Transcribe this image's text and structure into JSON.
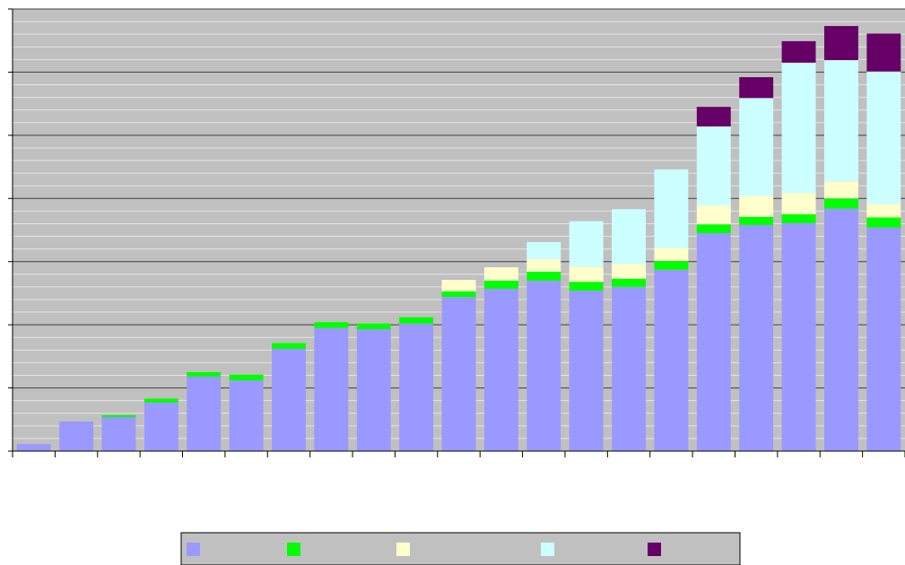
{
  "chart_data": {
    "type": "stacked_bar",
    "categories": [
      null,
      null,
      null,
      null,
      null,
      null,
      null,
      null,
      null,
      null,
      null,
      null,
      null,
      null,
      null,
      null,
      null,
      null,
      null,
      null,
      null
    ],
    "series": [
      {
        "color": "#9999ff",
        "values": [
          1.1,
          4.7,
          5.4,
          7.7,
          11.8,
          11.2,
          16.2,
          19.5,
          19.3,
          20.2,
          24.4,
          25.7,
          27.0,
          25.4,
          26.0,
          28.7,
          34.5,
          35.8,
          36.1,
          38.4,
          35.4
        ]
      },
      {
        "color": "#00ff00",
        "values": [
          0,
          0,
          0.3,
          0.6,
          0.7,
          0.9,
          0.9,
          0.9,
          0.9,
          1.0,
          0.9,
          1.3,
          1.4,
          1.4,
          1.3,
          1.4,
          1.4,
          1.3,
          1.4,
          1.6,
          1.6
        ]
      },
      {
        "color": "#ffffcc",
        "values": [
          0,
          0,
          0,
          0,
          0,
          0,
          0,
          0,
          0,
          0,
          1.8,
          2.1,
          2.0,
          2.4,
          2.3,
          2.1,
          3.0,
          3.3,
          3.4,
          2.7,
          2.1
        ]
      },
      {
        "color": "#ccffff",
        "values": [
          0,
          0,
          0,
          0,
          0,
          0,
          0,
          0,
          0,
          0,
          0,
          0,
          2.7,
          7.2,
          8.7,
          12.4,
          12.5,
          15.5,
          20.6,
          19.2,
          21.0
        ]
      },
      {
        "color": "#660066",
        "values": [
          0,
          0,
          0,
          0,
          0,
          0,
          0,
          0,
          0,
          0,
          0,
          0,
          0,
          0,
          0,
          0,
          3.1,
          3.3,
          3.4,
          5.4,
          6.0
        ]
      }
    ],
    "ylim": [
      0,
      70
    ],
    "yticks": [
      0,
      10,
      20,
      30,
      40,
      50,
      60,
      70
    ],
    "minor_yticks": [
      2,
      4,
      6,
      8,
      12,
      14,
      16,
      18,
      22,
      24,
      26,
      28,
      32,
      34,
      36,
      38,
      42,
      44,
      46,
      48,
      52,
      54,
      56,
      58,
      62,
      64,
      66,
      68
    ],
    "grid": true,
    "legend": "bottom",
    "background": "#c0c0c0"
  }
}
